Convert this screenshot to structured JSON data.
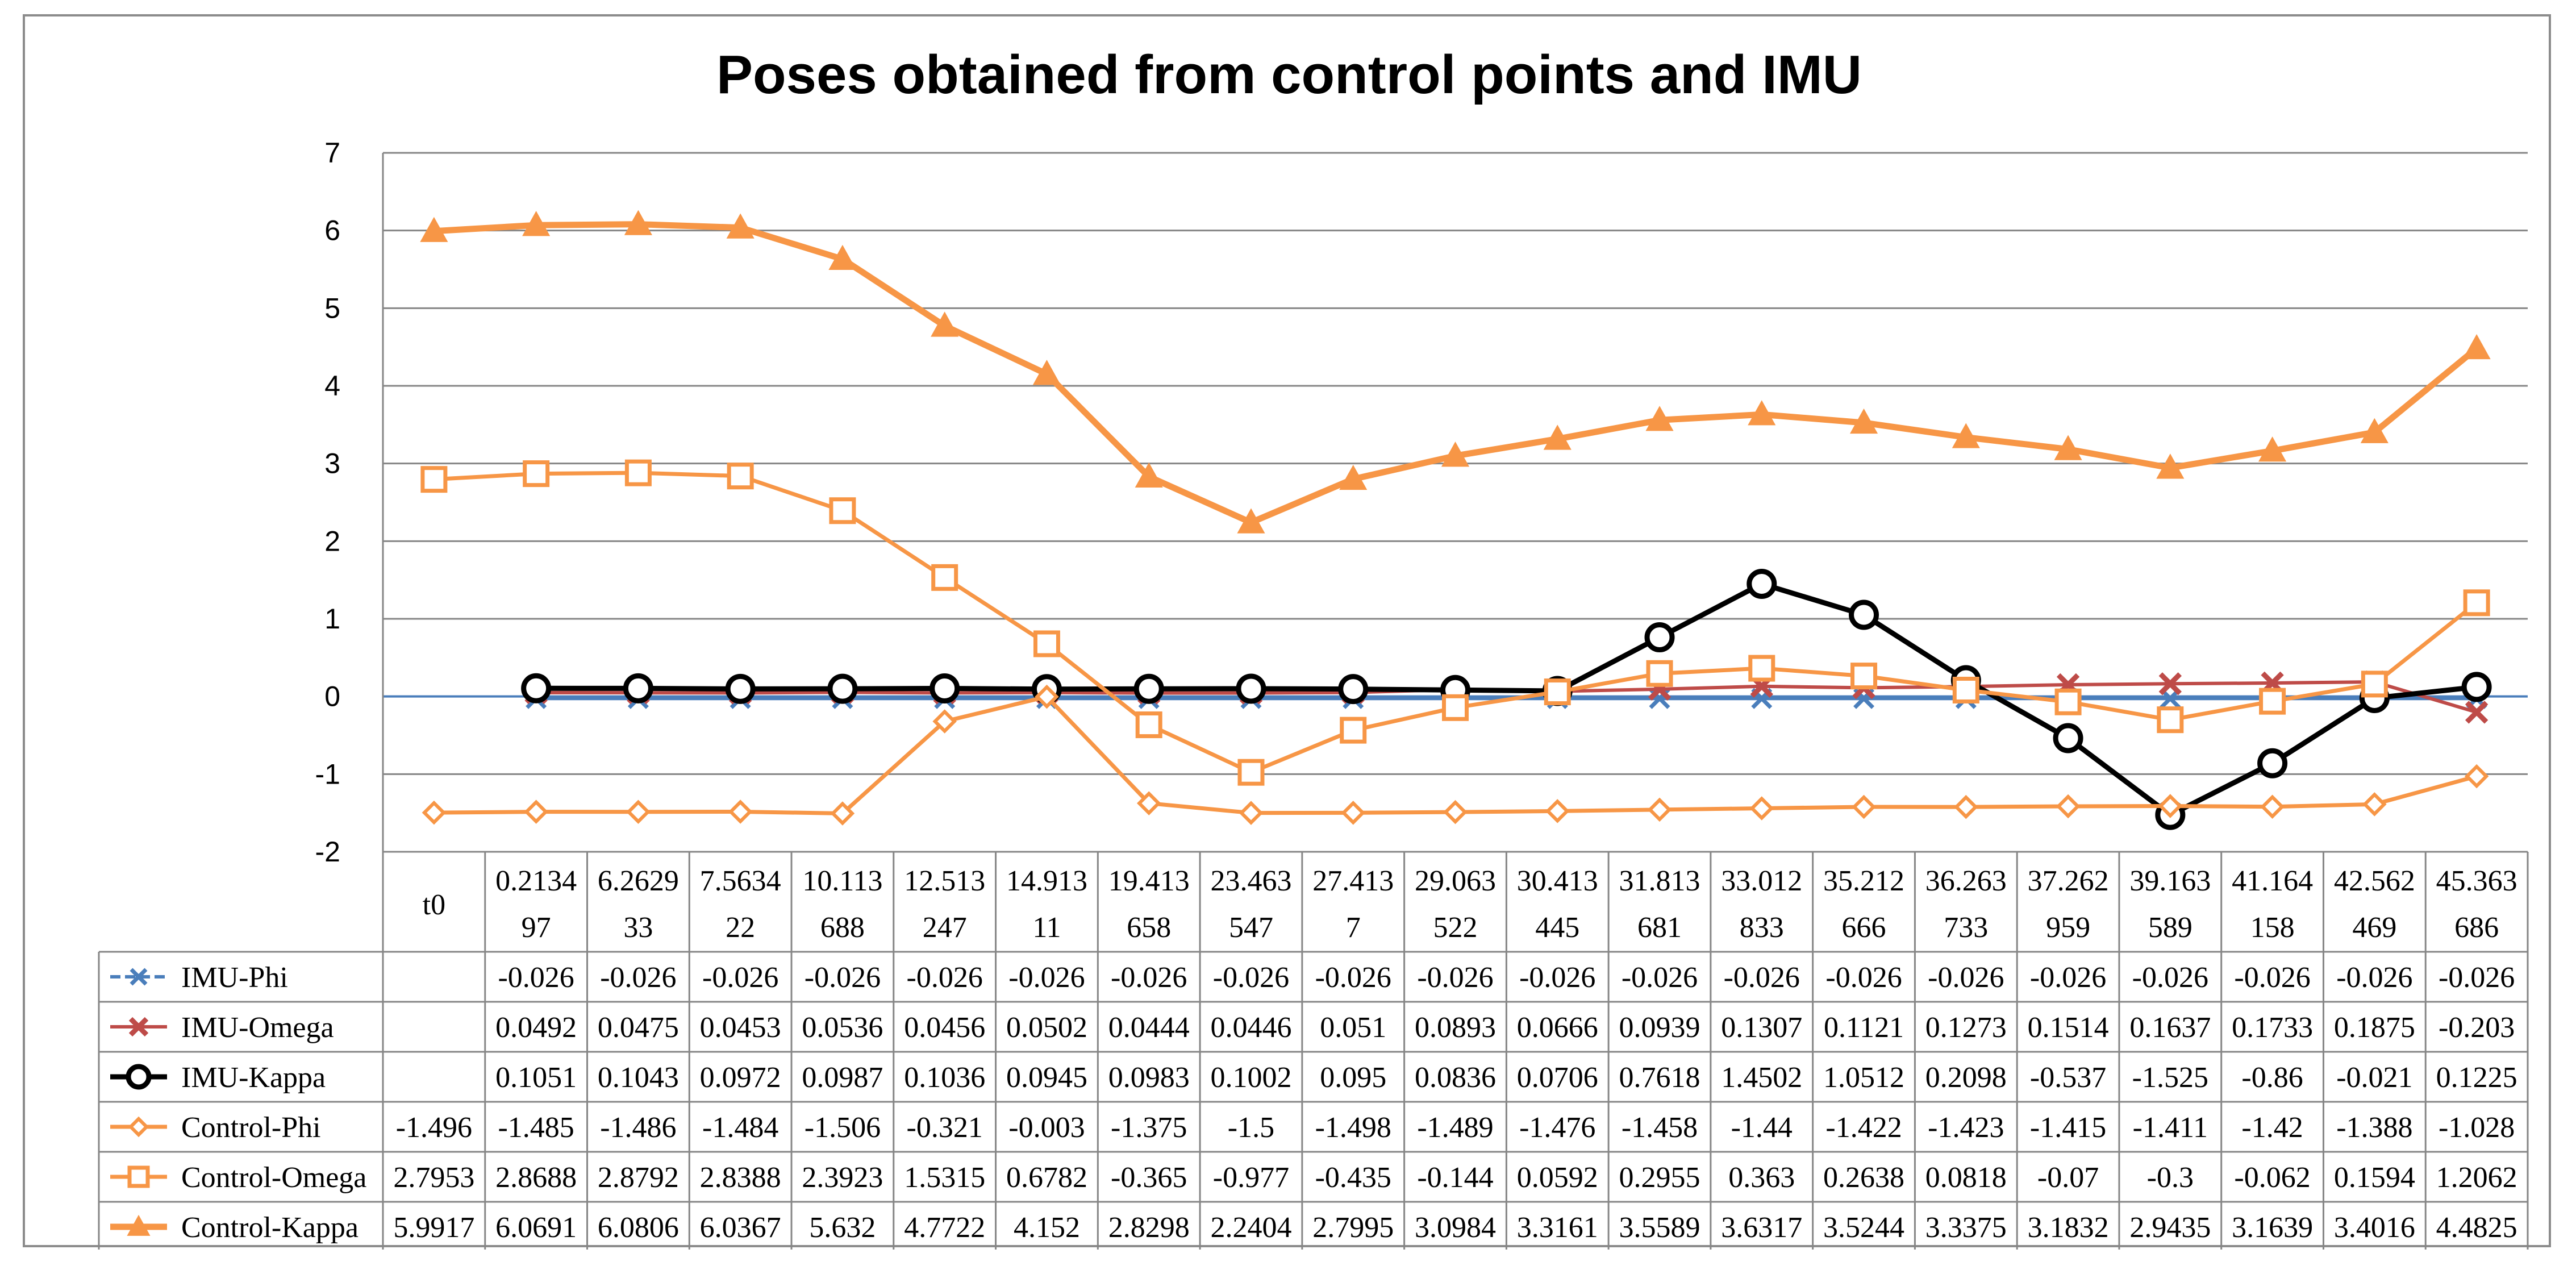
{
  "chart_data": {
    "type": "line",
    "title": "Poses obtained from control points and IMU",
    "xlabel": "",
    "ylabel": "",
    "ylim": [
      -2,
      7
    ],
    "yticks": [
      "7",
      "6",
      "5",
      "4",
      "3",
      "2",
      "1",
      "0",
      "-1",
      "-2"
    ],
    "grid": true,
    "legend": "data-table",
    "categories": [
      [
        "t0"
      ],
      [
        "0.2134",
        "97"
      ],
      [
        "6.2629",
        "33"
      ],
      [
        "7.5634",
        "22"
      ],
      [
        "10.113",
        "688"
      ],
      [
        "12.513",
        "247"
      ],
      [
        "14.913",
        "11"
      ],
      [
        "19.413",
        "658"
      ],
      [
        "23.463",
        "547"
      ],
      [
        "27.413",
        "7"
      ],
      [
        "29.063",
        "522"
      ],
      [
        "30.413",
        "445"
      ],
      [
        "31.813",
        "681"
      ],
      [
        "33.012",
        "833"
      ],
      [
        "35.212",
        "666"
      ],
      [
        "36.263",
        "733"
      ],
      [
        "37.262",
        "959"
      ],
      [
        "39.163",
        "589"
      ],
      [
        "41.164",
        "158"
      ],
      [
        "42.562",
        "469"
      ],
      [
        "45.363",
        "686"
      ]
    ],
    "series": [
      {
        "name": "IMU-Phi",
        "color": "#4a7ebb",
        "marker": "x",
        "values": [
          null,
          -0.026,
          -0.026,
          -0.026,
          -0.026,
          -0.026,
          -0.026,
          -0.026,
          -0.026,
          -0.026,
          -0.026,
          -0.026,
          -0.026,
          -0.026,
          -0.026,
          -0.026,
          -0.026,
          -0.026,
          -0.026,
          -0.026,
          -0.026
        ],
        "labels": [
          "",
          "-0.026",
          "-0.026",
          "-0.026",
          "-0.026",
          "-0.026",
          "-0.026",
          "-0.026",
          "-0.026",
          "-0.026",
          "-0.026",
          "-0.026",
          "-0.026",
          "-0.026",
          "-0.026",
          "-0.026",
          "-0.026",
          "-0.026",
          "-0.026",
          "-0.026",
          "-0.026"
        ]
      },
      {
        "name": "IMU-Omega",
        "color": "#be4b48",
        "marker": "x-bold",
        "values": [
          null,
          0.0492,
          0.0475,
          0.0453,
          0.0536,
          0.0456,
          0.0502,
          0.0444,
          0.0446,
          0.051,
          0.0893,
          0.0666,
          0.0939,
          0.1307,
          0.1121,
          0.1273,
          0.1514,
          0.1637,
          0.1733,
          0.1875,
          -0.203
        ],
        "labels": [
          "",
          "0.0492",
          "0.0475",
          "0.0453",
          "0.0536",
          "0.0456",
          "0.0502",
          "0.0444",
          "0.0446",
          "0.051",
          "0.0893",
          "0.0666",
          "0.0939",
          "0.1307",
          "0.1121",
          "0.1273",
          "0.1514",
          "0.1637",
          "0.1733",
          "0.1875",
          "-0.203"
        ]
      },
      {
        "name": "IMU-Kappa",
        "color": "#000000",
        "marker": "circle",
        "values": [
          null,
          0.1051,
          0.1043,
          0.0972,
          0.0987,
          0.1036,
          0.0945,
          0.0983,
          0.1002,
          0.095,
          0.0836,
          0.0706,
          0.7618,
          1.4502,
          1.0512,
          0.2098,
          -0.537,
          -1.525,
          -0.86,
          -0.021,
          0.1225
        ],
        "labels": [
          "",
          "0.1051",
          "0.1043",
          "0.0972",
          "0.0987",
          "0.1036",
          "0.0945",
          "0.0983",
          "0.1002",
          "0.095",
          "0.0836",
          "0.0706",
          "0.7618",
          "1.4502",
          "1.0512",
          "0.2098",
          "-0.537",
          "-1.525",
          "-0.86",
          "-0.021",
          "0.1225"
        ]
      },
      {
        "name": "Control-Phi",
        "color": "#f79646",
        "marker": "diamond",
        "values": [
          -1.496,
          -1.485,
          -1.486,
          -1.484,
          -1.506,
          -0.321,
          -0.003,
          -1.375,
          -1.5,
          -1.498,
          -1.489,
          -1.476,
          -1.458,
          -1.44,
          -1.422,
          -1.423,
          -1.415,
          -1.411,
          -1.42,
          -1.388,
          -1.028
        ],
        "labels": [
          "-1.496",
          "-1.485",
          "-1.486",
          "-1.484",
          "-1.506",
          "-0.321",
          "-0.003",
          "-1.375",
          "-1.5",
          "-1.498",
          "-1.489",
          "-1.476",
          "-1.458",
          "-1.44",
          "-1.422",
          "-1.423",
          "-1.415",
          "-1.411",
          "-1.42",
          "-1.388",
          "-1.028"
        ]
      },
      {
        "name": "Control-Omega",
        "color": "#f79646",
        "marker": "square",
        "values": [
          2.7953,
          2.8688,
          2.8792,
          2.8388,
          2.3923,
          1.5315,
          0.6782,
          -0.365,
          -0.977,
          -0.435,
          -0.144,
          0.0592,
          0.2955,
          0.363,
          0.2638,
          0.0818,
          -0.07,
          -0.3,
          -0.062,
          0.1594,
          1.2062
        ],
        "labels": [
          "2.7953",
          "2.8688",
          "2.8792",
          "2.8388",
          "2.3923",
          "1.5315",
          "0.6782",
          "-0.365",
          "-0.977",
          "-0.435",
          "-0.144",
          "0.0592",
          "0.2955",
          "0.363",
          "0.2638",
          "0.0818",
          "-0.07",
          "-0.3",
          "-0.062",
          "0.1594",
          "1.2062"
        ]
      },
      {
        "name": "Control-Kappa",
        "color": "#f79646",
        "marker": "triangle",
        "values": [
          5.9917,
          6.0691,
          6.0806,
          6.0367,
          5.632,
          4.7722,
          4.152,
          2.8298,
          2.2404,
          2.7995,
          3.0984,
          3.3161,
          3.5589,
          3.6317,
          3.5244,
          3.3375,
          3.1832,
          2.9435,
          3.1639,
          3.4016,
          4.4825
        ],
        "labels": [
          "5.9917",
          "6.0691",
          "6.0806",
          "6.0367",
          "5.632",
          "4.7722",
          "4.152",
          "2.8298",
          "2.2404",
          "2.7995",
          "3.0984",
          "3.3161",
          "3.5589",
          "3.6317",
          "3.5244",
          "3.3375",
          "3.1832",
          "2.9435",
          "3.1639",
          "3.4016",
          "4.4825"
        ]
      }
    ]
  }
}
